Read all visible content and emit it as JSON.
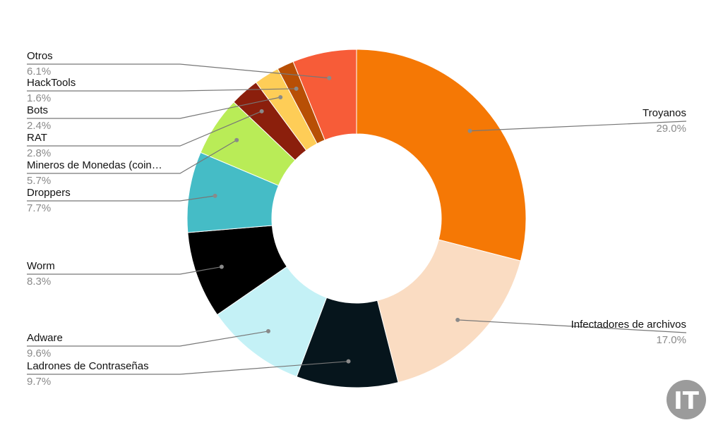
{
  "chart_data": {
    "type": "pie",
    "donut": true,
    "legend": "none",
    "slices": [
      {
        "label": "Troyanos",
        "value": 29.0,
        "display": "29.0%",
        "color": "#f57805"
      },
      {
        "label": "Infectadores de archivos",
        "value": 17.0,
        "display": "17.0%",
        "color": "#fadcc2"
      },
      {
        "label": "Ladrones de Contraseñas",
        "value": 9.7,
        "display": "9.7%",
        "color": "#06151c"
      },
      {
        "label": "Adware",
        "value": 9.6,
        "display": "9.6%",
        "color": "#c4f1f6"
      },
      {
        "label": "Worm",
        "value": 8.3,
        "display": "8.3%",
        "color": "#000000"
      },
      {
        "label": "Droppers",
        "value": 7.7,
        "display": "7.7%",
        "color": "#45bcc6"
      },
      {
        "label": "Mineros de Monedas (coin…",
        "value": 5.7,
        "display": "5.7%",
        "color": "#b9ec57"
      },
      {
        "label": "RAT",
        "value": 2.8,
        "display": "2.8%",
        "color": "#8b1f0c"
      },
      {
        "label": "Bots",
        "value": 2.4,
        "display": "2.4%",
        "color": "#fecd57"
      },
      {
        "label": "HackTools",
        "value": 1.6,
        "display": "1.6%",
        "color": "#b84f05"
      },
      {
        "label": "Otros",
        "value": 6.1,
        "display": "6.1%",
        "color": "#f75c38"
      }
    ]
  },
  "watermark": {
    "text": "IT",
    "color": "#9b9b9b"
  }
}
